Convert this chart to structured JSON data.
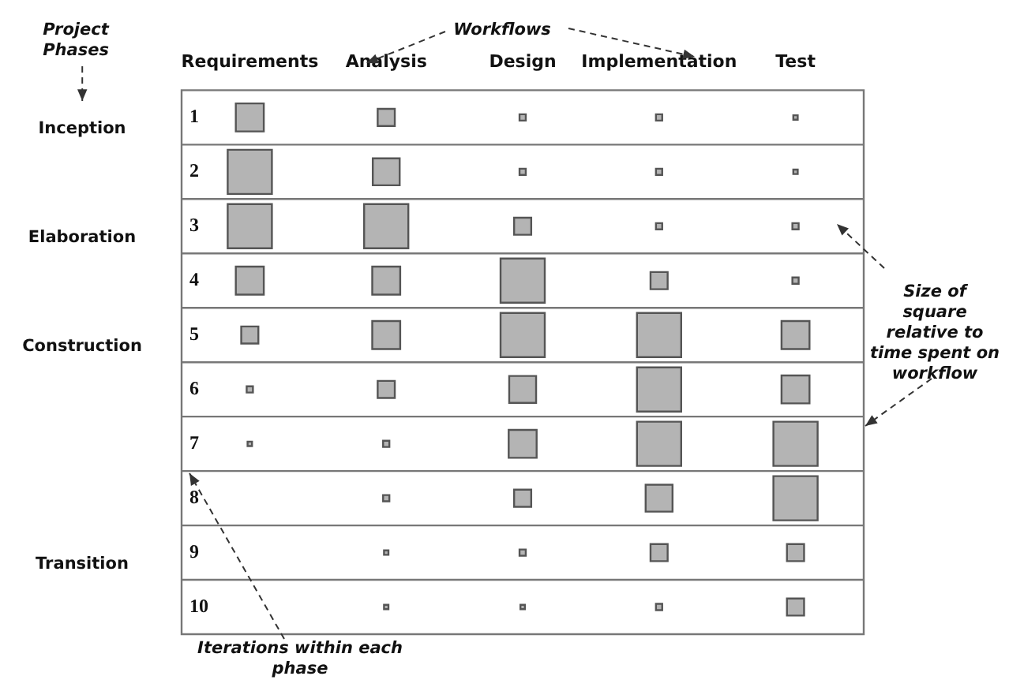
{
  "chart_data": {
    "type": "bubble",
    "relative": false,
    "categories": [
      "Requirements",
      "Analysis",
      "Design",
      "Implementation",
      "Test"
    ],
    "ylim": [
      10.5,
      0.5
    ],
    "yticks": [
      1,
      2,
      3,
      4,
      5,
      6,
      7,
      8,
      9,
      10
    ],
    "marker": "square",
    "grid": "y",
    "legend": false,
    "series": [
      {
        "color": "#b4b4b4",
        "values": [
          1,
          1,
          1,
          1,
          1
        ],
        "sizes": [
          0.4,
          0.15,
          0.02,
          0.02,
          0.01
        ]
      },
      {
        "color": "#b4b4b4",
        "values": [
          2,
          2,
          2,
          2,
          2
        ],
        "sizes": [
          1,
          0.37,
          0.02,
          0.02,
          0.01
        ]
      },
      {
        "color": "#b4b4b4",
        "values": [
          3,
          3,
          3,
          3,
          3
        ],
        "sizes": [
          1,
          1,
          0.15,
          0.02,
          0.02
        ]
      },
      {
        "color": "#b4b4b4",
        "values": [
          4,
          4,
          4,
          4,
          4
        ],
        "sizes": [
          0.4,
          0.4,
          1,
          0.15,
          0.02
        ]
      },
      {
        "color": "#b4b4b4",
        "values": [
          5,
          5,
          5,
          5,
          5
        ],
        "sizes": [
          0.15,
          0.4,
          1,
          1,
          0.4
        ]
      },
      {
        "color": "#b4b4b4",
        "values": [
          6,
          6,
          6,
          6,
          6
        ],
        "sizes": [
          0.02,
          0.15,
          0.37,
          1,
          0.4
        ]
      },
      {
        "color": "#b4b4b4",
        "values": [
          7,
          7,
          7,
          7,
          7
        ],
        "sizes": [
          0.01,
          0.02,
          0.4,
          1,
          1
        ]
      },
      {
        "color": "#b4b4b4",
        "values": [
          null,
          8,
          8,
          8,
          8
        ],
        "sizes": [
          null,
          0.02,
          0.15,
          0.37,
          1
        ]
      },
      {
        "color": "#b4b4b4",
        "values": [
          null,
          9,
          9,
          9,
          9
        ],
        "sizes": [
          null,
          0.01,
          0.02,
          0.15,
          0.15
        ]
      },
      {
        "color": "#b4b4b4",
        "values": [
          null,
          10,
          10,
          10,
          10
        ],
        "sizes": [
          null,
          0.01,
          0.01,
          0.02,
          0.15
        ]
      }
    ],
    "annotations": [
      "Project Phases",
      "Workflows",
      "Size of square relative to time spent on workflow",
      "Iterations within each phase",
      "Inception",
      "Elaboration",
      "Construction",
      "Transition"
    ]
  }
}
